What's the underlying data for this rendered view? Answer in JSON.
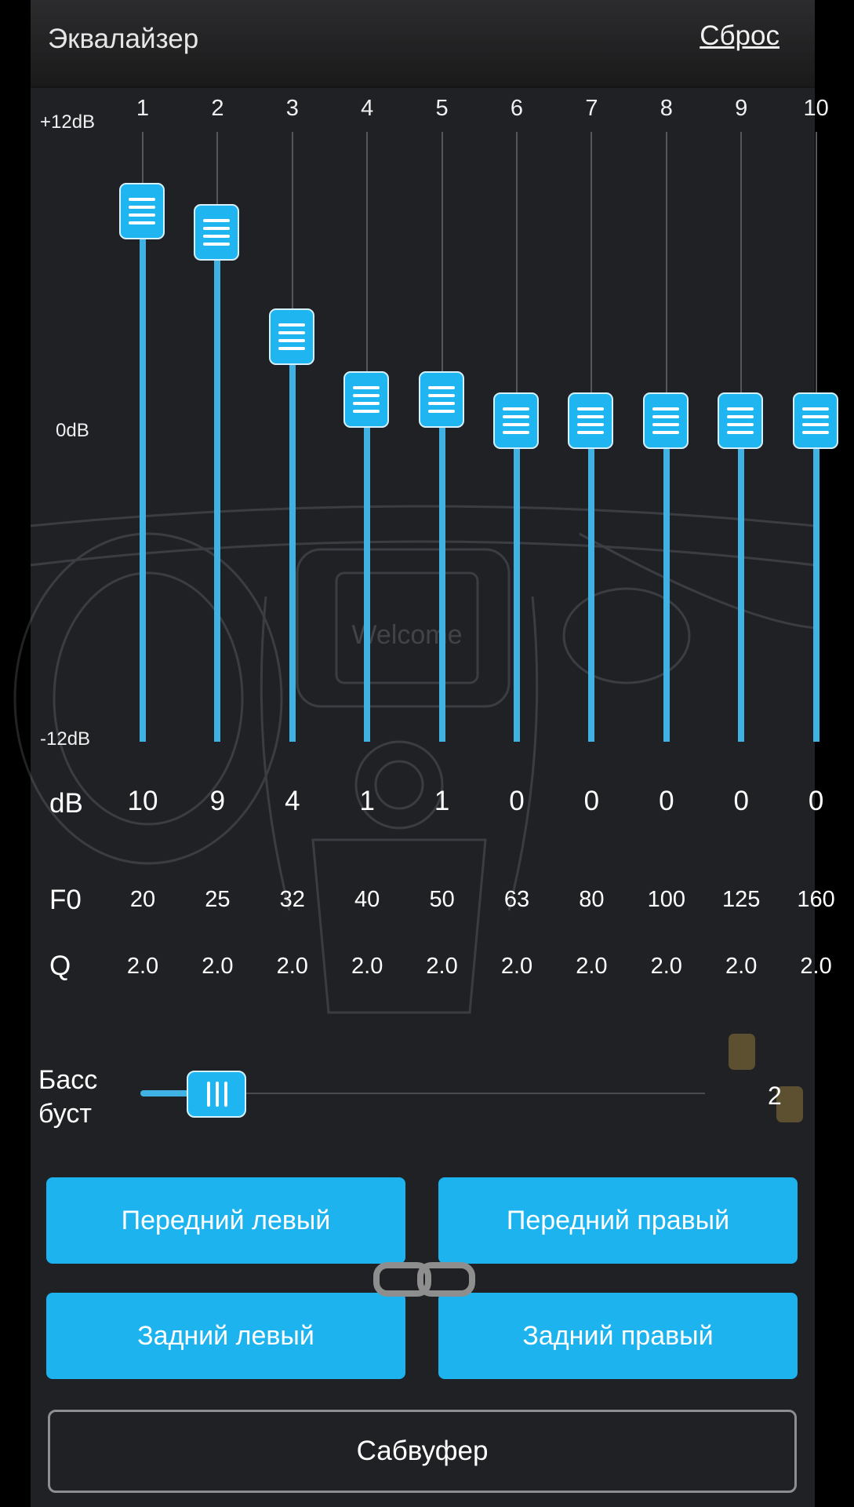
{
  "header": {
    "title": "Эквалайзер",
    "reset_label": "Сброс"
  },
  "equalizer": {
    "scale_top": "+12dB",
    "scale_mid": "0dB",
    "scale_bottom": "-12dB",
    "gain_min": -12,
    "gain_max": 12,
    "row_labels": {
      "db": "dB",
      "f0": "F0",
      "q": "Q"
    },
    "bands": [
      {
        "number": "1",
        "db": "10",
        "gain": 10,
        "f0": "20",
        "q": "2.0"
      },
      {
        "number": "2",
        "db": "9",
        "gain": 9,
        "f0": "25",
        "q": "2.0"
      },
      {
        "number": "3",
        "db": "4",
        "gain": 4,
        "f0": "32",
        "q": "2.0"
      },
      {
        "number": "4",
        "db": "1",
        "gain": 1,
        "f0": "40",
        "q": "2.0"
      },
      {
        "number": "5",
        "db": "1",
        "gain": 1,
        "f0": "50",
        "q": "2.0"
      },
      {
        "number": "6",
        "db": "0",
        "gain": 0,
        "f0": "63",
        "q": "2.0"
      },
      {
        "number": "7",
        "db": "0",
        "gain": 0,
        "f0": "80",
        "q": "2.0"
      },
      {
        "number": "8",
        "db": "0",
        "gain": 0,
        "f0": "100",
        "q": "2.0"
      },
      {
        "number": "9",
        "db": "0",
        "gain": 0,
        "f0": "125",
        "q": "2.0"
      },
      {
        "number": "10",
        "db": "0",
        "gain": 0,
        "f0": "160",
        "q": "2.0"
      }
    ]
  },
  "bass_boost": {
    "label_line1": "Басс",
    "label_line2": "буст",
    "value": "2",
    "level_fraction": 0.1
  },
  "speakers": {
    "front_left": "Передний левый",
    "front_right": "Передний правый",
    "rear_left": "Задний левый",
    "rear_right": "Задний правый",
    "subwoofer": "Сабвуфер"
  },
  "watermark": {
    "screen_text": "Welcome"
  },
  "icons": {
    "link": "link-icon"
  },
  "colors": {
    "accent": "#1cb3ef",
    "panel_bg": "#202125",
    "track": "#3fb2e3"
  }
}
